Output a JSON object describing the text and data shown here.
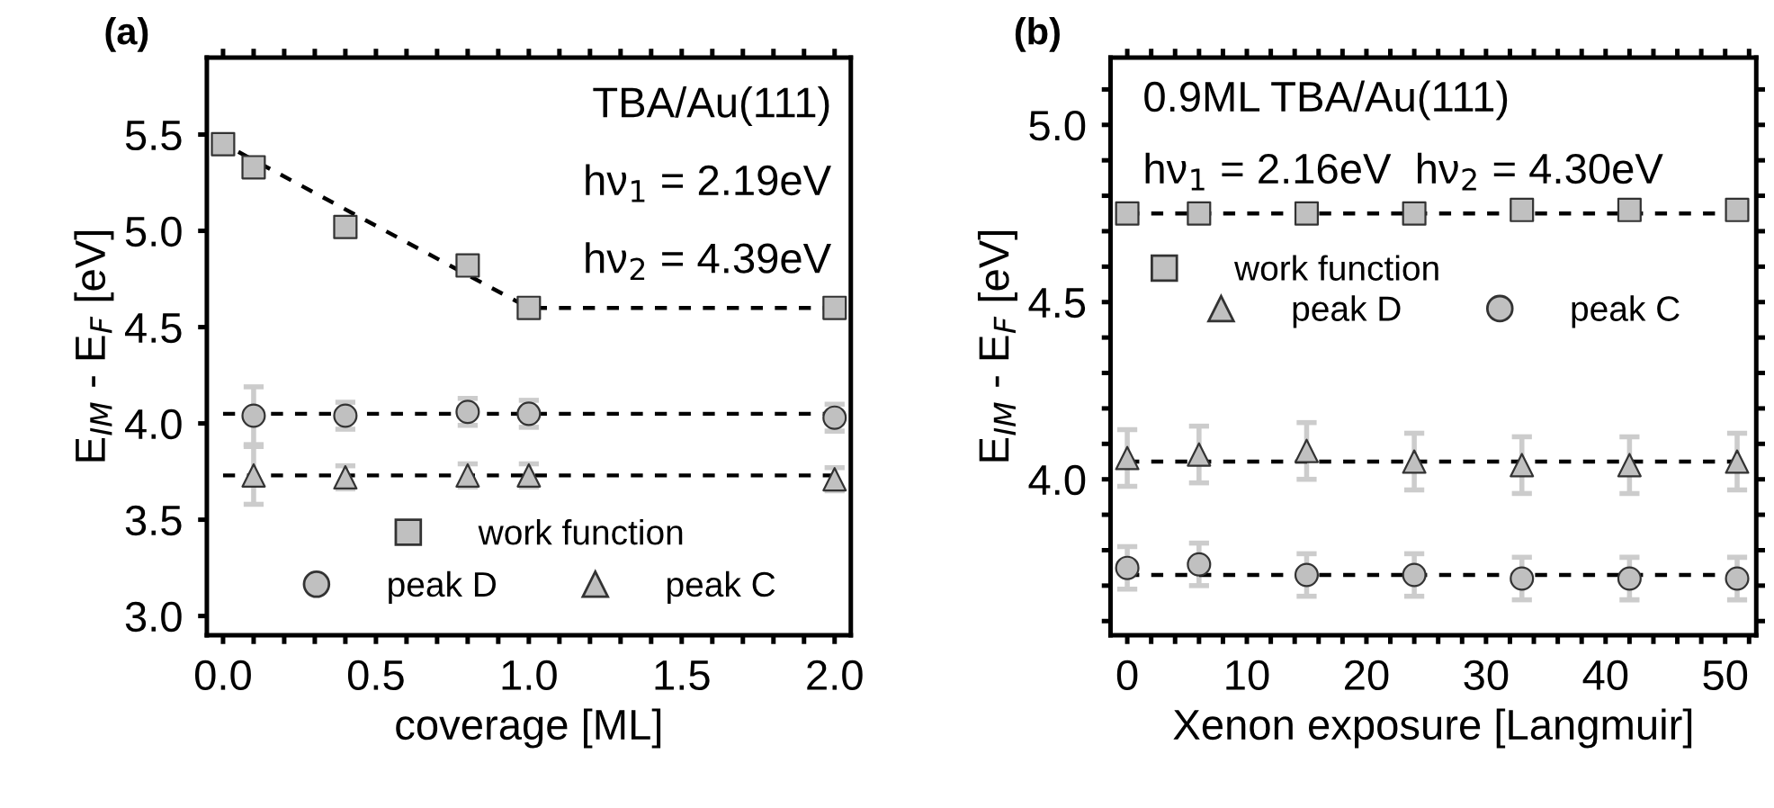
{
  "chart_data": [
    {
      "type": "scatter",
      "xlabel": "coverage [ML]",
      "ylabel": "E$_{IM}$ - E$_{F}$ [eV]",
      "annotations": [
        "(a)",
        "TBA/Au(111)",
        "hν$_{1}$ = 2.19eV",
        "hν$_{2}$ = 4.39eV"
      ],
      "xlim": [
        -0.053,
        2.053
      ],
      "ylim": [
        2.9,
        5.9
      ],
      "xticks": [
        {
          "value": 0,
          "label": "0.0"
        },
        {
          "value": 0.1,
          "label": null
        },
        {
          "value": 0.2,
          "label": null
        },
        {
          "value": 0.3,
          "label": null
        },
        {
          "value": 0.4,
          "label": null
        },
        {
          "value": 0.5,
          "label": "0.5"
        },
        {
          "value": 0.6,
          "label": null
        },
        {
          "value": 0.7,
          "label": null
        },
        {
          "value": 0.8,
          "label": null
        },
        {
          "value": 0.9,
          "label": null
        },
        {
          "value": 1.0,
          "label": "1.0"
        },
        {
          "value": 1.1,
          "label": null
        },
        {
          "value": 1.2,
          "label": null
        },
        {
          "value": 1.3,
          "label": null
        },
        {
          "value": 1.4,
          "label": null
        },
        {
          "value": 1.5,
          "label": "1.5"
        },
        {
          "value": 1.6,
          "label": null
        },
        {
          "value": 1.7,
          "label": null
        },
        {
          "value": 1.8,
          "label": null
        },
        {
          "value": 1.9,
          "label": null
        },
        {
          "value": 2.0,
          "label": "2.0"
        }
      ],
      "yticks": [
        {
          "value": 3.0,
          "label": "3.0"
        },
        {
          "value": 3.5,
          "label": "3.5"
        },
        {
          "value": 4.0,
          "label": "4.0"
        },
        {
          "value": 4.5,
          "label": "4.5"
        },
        {
          "value": 5.0,
          "label": "5.0"
        },
        {
          "value": 5.5,
          "label": "5.5"
        }
      ],
      "legend": "bottom",
      "grid": false,
      "line_style": "dashed",
      "series": [
        {
          "name": "work function",
          "marker": "square",
          "color": "#c0c0c0",
          "x": [
            0,
            0.1,
            0.4,
            0.8,
            1.0,
            2.0
          ],
          "values": [
            5.45,
            5.33,
            5.02,
            4.82,
            4.6,
            4.6
          ]
        },
        {
          "name": "peak D",
          "marker": "circle",
          "color": "#c0c0c0",
          "x": [
            0.1,
            0.4,
            0.8,
            1.0,
            2.0
          ],
          "values": [
            4.04,
            4.04,
            4.06,
            4.05,
            4.03
          ],
          "errors": [
            0.15,
            0.07,
            0.07,
            0.07,
            0.07
          ]
        },
        {
          "name": "peak C",
          "marker": "triangle",
          "color": "#c0c0c0",
          "x": [
            0.1,
            0.4,
            0.8,
            1.0,
            2.0
          ],
          "values": [
            3.73,
            3.72,
            3.73,
            3.73,
            3.71
          ],
          "errors": [
            0.15,
            0.06,
            0.06,
            0.06,
            0.06
          ]
        },
        {
          "type": "line",
          "color": "#000000",
          "x": [
            0.05,
            1.0,
            2.0
          ],
          "values": [
            5.41,
            4.6,
            4.6
          ]
        },
        {
          "type": "line",
          "color": "#000000",
          "x": [
            0,
            2.0
          ],
          "values": [
            4.05,
            4.05
          ]
        },
        {
          "type": "line",
          "color": "#000000",
          "x": [
            0,
            2.0
          ],
          "values": [
            3.73,
            3.73
          ]
        }
      ]
    },
    {
      "type": "scatter",
      "xlabel": "Xenon exposure [Langmuir]",
      "ylabel": "E$_{IM}$ - E$_{F}$ [eV]",
      "annotations": [
        "(b)",
        "0.9ML TBA/Au(111)",
        "hν$_{1}$ = 2.16eV  hν$_{2}$ = 4.30eV"
      ],
      "xlim": [
        -1.4,
        52.6
      ],
      "ylim": [
        3.56,
        5.19
      ],
      "xticks": [
        0,
        {
          "value": 2,
          "label": null
        },
        {
          "value": 4,
          "label": null
        },
        {
          "value": 6,
          "label": null
        },
        {
          "value": 8,
          "label": null
        },
        10,
        {
          "value": 12,
          "label": null
        },
        {
          "value": 14,
          "label": null
        },
        {
          "value": 16,
          "label": null
        },
        {
          "value": 18,
          "label": null
        },
        20,
        {
          "value": 22,
          "label": null
        },
        {
          "value": 24,
          "label": null
        },
        {
          "value": 26,
          "label": null
        },
        {
          "value": 28,
          "label": null
        },
        30,
        {
          "value": 32,
          "label": null
        },
        {
          "value": 34,
          "label": null
        },
        {
          "value": 36,
          "label": null
        },
        {
          "value": 38,
          "label": null
        },
        40,
        {
          "value": 42,
          "label": null
        },
        {
          "value": 44,
          "label": null
        },
        {
          "value": 46,
          "label": null
        },
        {
          "value": 48,
          "label": null
        },
        50,
        {
          "value": 52,
          "label": null
        }
      ],
      "yticks": [
        {
          "value": 3.6,
          "label": null
        },
        {
          "value": 3.7,
          "label": null
        },
        {
          "value": 3.8,
          "label": null
        },
        {
          "value": 3.9,
          "label": null
        },
        {
          "value": 4.0,
          "label": "4.0"
        },
        {
          "value": 4.1,
          "label": null
        },
        {
          "value": 4.2,
          "label": null
        },
        {
          "value": 4.3,
          "label": null
        },
        {
          "value": 4.4,
          "label": null
        },
        {
          "value": 4.5,
          "label": "4.5"
        },
        {
          "value": 4.6,
          "label": null
        },
        {
          "value": 4.7,
          "label": null
        },
        {
          "value": 4.8,
          "label": null
        },
        {
          "value": 4.9,
          "label": null
        },
        {
          "value": 5.0,
          "label": "5.0"
        },
        {
          "value": 5.1,
          "label": null
        }
      ],
      "legend": "center",
      "grid": false,
      "line_style": "dashed",
      "series": [
        {
          "name": "work function",
          "marker": "square",
          "color": "#c0c0c0",
          "x": [
            0,
            6,
            15,
            24,
            33,
            42,
            51
          ],
          "values": [
            4.75,
            4.75,
            4.75,
            4.75,
            4.76,
            4.76,
            4.76
          ]
        },
        {
          "name": "peak D",
          "marker": "triangle",
          "color": "#c0c0c0",
          "x": [
            0,
            6,
            15,
            24,
            33,
            42,
            51
          ],
          "values": [
            4.06,
            4.07,
            4.08,
            4.05,
            4.04,
            4.04,
            4.05
          ],
          "errors": [
            0.08,
            0.08,
            0.08,
            0.08,
            0.08,
            0.08,
            0.08
          ]
        },
        {
          "name": "peak C",
          "marker": "circle",
          "color": "#c0c0c0",
          "x": [
            0,
            6,
            15,
            24,
            33,
            42,
            51
          ],
          "values": [
            3.75,
            3.76,
            3.73,
            3.73,
            3.72,
            3.72,
            3.72
          ],
          "errors": [
            0.06,
            0.06,
            0.06,
            0.06,
            0.06,
            0.06,
            0.06
          ]
        },
        {
          "type": "line",
          "color": "#000000",
          "x": [
            0,
            51
          ],
          "values": [
            4.75,
            4.75
          ]
        },
        {
          "type": "line",
          "color": "#000000",
          "x": [
            0,
            51
          ],
          "values": [
            4.05,
            4.05
          ]
        },
        {
          "type": "line",
          "color": "#000000",
          "x": [
            0,
            51
          ],
          "values": [
            3.73,
            3.73
          ]
        }
      ]
    }
  ]
}
